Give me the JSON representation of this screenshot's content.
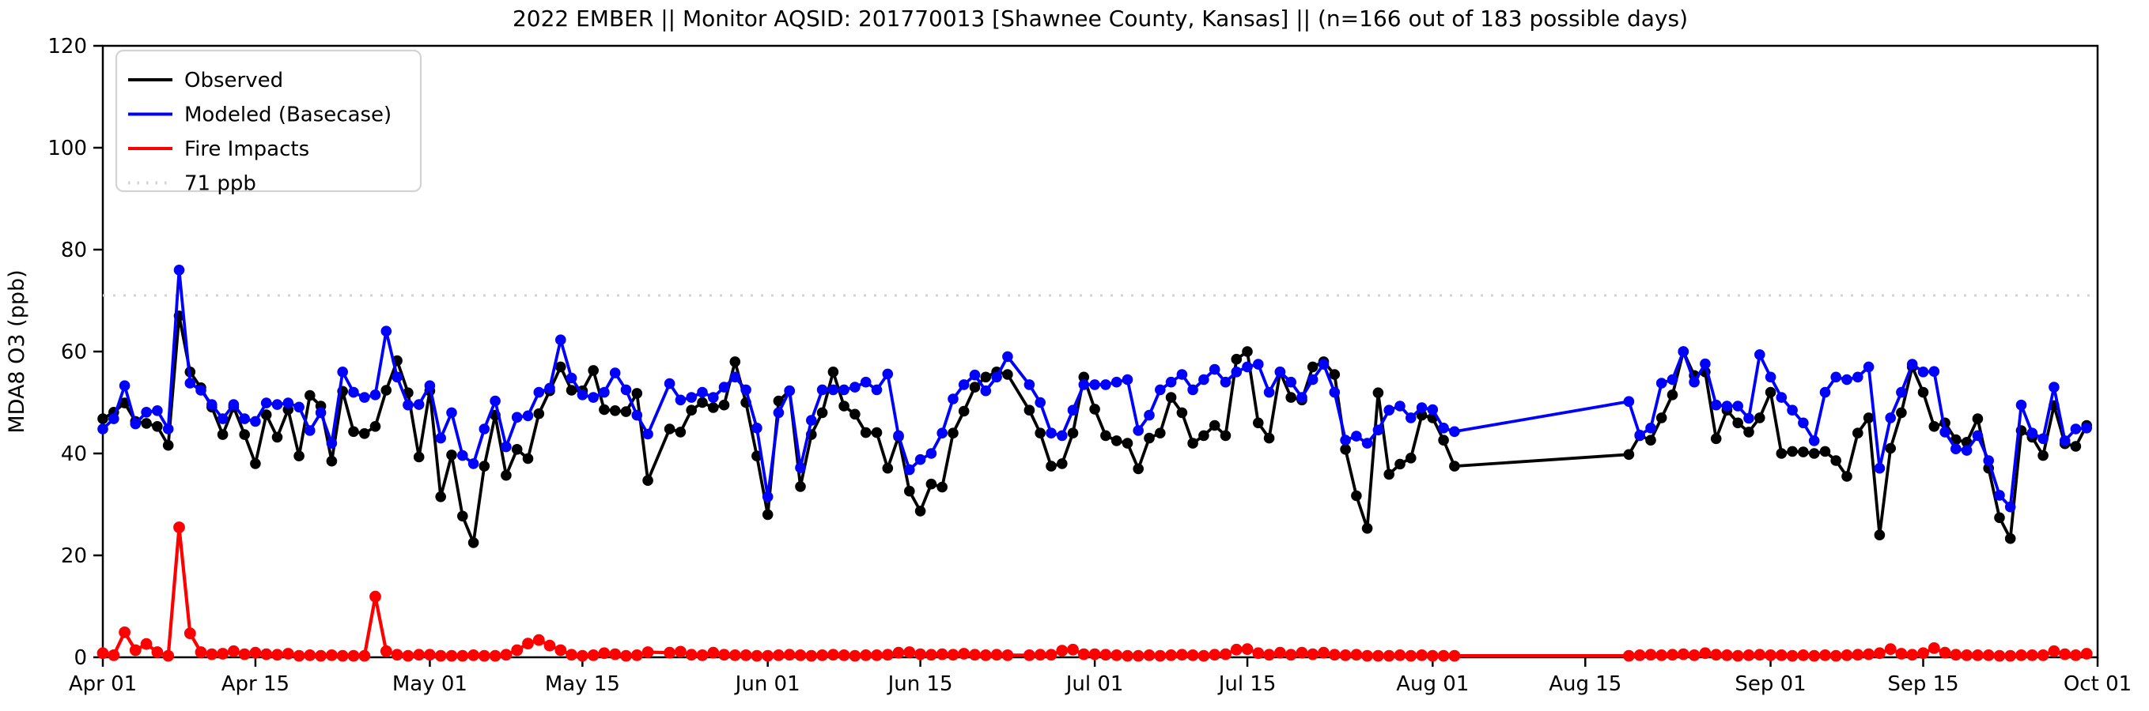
{
  "title": "2022 EMBER || Monitor AQSID: 201770013 [Shawnee County, Kansas] || (n=166 out of 183 possible days)",
  "axes": {
    "ylabel": "MDA8 O3 (ppb)",
    "ylim": [
      0,
      120
    ],
    "yticks": [
      {
        "label": "0",
        "value": 0
      },
      {
        "label": "20",
        "value": 20
      },
      {
        "label": "40",
        "value": 40
      },
      {
        "label": "60",
        "value": 60
      },
      {
        "label": "80",
        "value": 80
      },
      {
        "label": "100",
        "value": 100
      },
      {
        "label": "120",
        "value": 120
      }
    ],
    "xticks": [
      {
        "label": "Apr 01",
        "offset": 0
      },
      {
        "label": "Apr 15",
        "offset": 14
      },
      {
        "label": "May 01",
        "offset": 30
      },
      {
        "label": "May 15",
        "offset": 44
      },
      {
        "label": "Jun 01",
        "offset": 61
      },
      {
        "label": "Jun 15",
        "offset": 75
      },
      {
        "label": "Jul 01",
        "offset": 91
      },
      {
        "label": "Jul 15",
        "offset": 105
      },
      {
        "label": "Aug 01",
        "offset": 122
      },
      {
        "label": "Aug 15",
        "offset": 136
      },
      {
        "label": "Sep 01",
        "offset": 153
      },
      {
        "label": "Sep 15",
        "offset": 167
      },
      {
        "label": "Oct 01",
        "offset": 183
      }
    ],
    "grid": false
  },
  "legend": {
    "position": "upper-left",
    "items": [
      {
        "label": "Observed",
        "color": "#000000",
        "style": "solid"
      },
      {
        "label": "Modeled (Basecase)",
        "color": "#0000ff",
        "style": "solid"
      },
      {
        "label": "Fire Impacts",
        "color": "#ff0000",
        "style": "solid"
      },
      {
        "label": "71 ppb",
        "color": "#d3d3d3",
        "style": "dotted"
      }
    ]
  },
  "threshold": {
    "label": "71 ppb",
    "value": 71,
    "color": "#d3d3d3",
    "style": "dotted"
  },
  "chart_data": {
    "type": "line",
    "x_unit": "days since Apr 01 2022 (offset; ticks labeled Apr 01 - Oct 01)",
    "x_range_days": 183,
    "n_days_plotted": 166,
    "n_days_possible": 183,
    "missing_note": "no markers Aug 04-18 (long straight gap segment), May 22, Jun 24",
    "x_offsets": [
      0,
      1,
      2,
      3,
      4,
      5,
      6,
      7,
      8,
      9,
      10,
      11,
      12,
      13,
      14,
      15,
      16,
      17,
      18,
      19,
      20,
      21,
      22,
      23,
      24,
      25,
      26,
      27,
      28,
      29,
      30,
      31,
      32,
      33,
      34,
      35,
      36,
      37,
      38,
      39,
      40,
      41,
      42,
      43,
      44,
      45,
      46,
      47,
      48,
      49,
      50,
      52,
      53,
      54,
      55,
      56,
      57,
      58,
      59,
      60,
      61,
      62,
      63,
      64,
      65,
      66,
      67,
      68,
      69,
      70,
      71,
      72,
      73,
      74,
      75,
      76,
      77,
      78,
      79,
      80,
      81,
      82,
      83,
      85,
      86,
      87,
      88,
      89,
      90,
      91,
      92,
      93,
      94,
      95,
      96,
      97,
      98,
      99,
      100,
      101,
      102,
      103,
      104,
      105,
      106,
      107,
      108,
      109,
      110,
      111,
      112,
      113,
      114,
      115,
      116,
      117,
      118,
      119,
      120,
      121,
      122,
      123,
      124,
      140,
      141,
      142,
      143,
      144,
      145,
      146,
      147,
      148,
      149,
      150,
      151,
      152,
      153,
      154,
      155,
      156,
      157,
      158,
      159,
      160,
      161,
      162,
      163,
      164,
      165,
      166,
      167,
      168,
      169,
      170,
      171,
      172,
      173,
      174,
      175,
      176,
      177,
      178,
      179,
      180,
      181,
      182
    ],
    "series": [
      {
        "name": "Observed",
        "color": "#000000",
        "marker": "circle",
        "line_width": 3.8,
        "marker_r": 6.8,
        "values": [
          46.8,
          48.1,
          49.9,
          46.3,
          45.9,
          45.3,
          41.6,
          67,
          56,
          52.9,
          49.1,
          43.7,
          49.1,
          43.7,
          38,
          47.6,
          43.2,
          48.6,
          39.5,
          51.4,
          49.3,
          38.5,
          52.2,
          44.3,
          43.9,
          45.3,
          52.4,
          58.2,
          51.9,
          39.3,
          52.3,
          31.5,
          39.7,
          27.7,
          22.5,
          37.5,
          47.5,
          35.7,
          40.8,
          39,
          47.8,
          52.3,
          57,
          52.4,
          52.3,
          56.3,
          48.6,
          48.4,
          48.2,
          51.8,
          34.7,
          44.8,
          44.2,
          48.5,
          50,
          49,
          49.5,
          58,
          50,
          39.5,
          28,
          50.3,
          52.3,
          33.5,
          43.7,
          48,
          56,
          49.3,
          47.7,
          44.1,
          44.1,
          37.1,
          43.3,
          32.6,
          28.7,
          34,
          33.4,
          44,
          48.3,
          53,
          55,
          56,
          55.5,
          48.5,
          44,
          37.5,
          38,
          44,
          55,
          48.7,
          43.5,
          42.5,
          42,
          37,
          43,
          44,
          51,
          48,
          42,
          43.5,
          45.5,
          43.5,
          58.5,
          60,
          46,
          43,
          56,
          51,
          50.5,
          57,
          58,
          55.5,
          40.8,
          31.7,
          25.3,
          51.9,
          35.9,
          37.9,
          39.1,
          47.5,
          47,
          42.6,
          37.5,
          39.8,
          43.5,
          42.6,
          47,
          51.5,
          60,
          55.3,
          56,
          42.9,
          48.5,
          46,
          44.2,
          47,
          52,
          40,
          40.4,
          40.3,
          40,
          40.4,
          38.6,
          35.5,
          44,
          47,
          24,
          41,
          48,
          57,
          52,
          45.3,
          46,
          42.7,
          42.2,
          46.8,
          37.1,
          27.4,
          23.3,
          44.5,
          43.2,
          39.6,
          49.4,
          41.9,
          41.4,
          45.5
        ]
      },
      {
        "name": "Modeled (Basecase)",
        "color": "#0000ff",
        "marker": "circle",
        "line_width": 3.8,
        "marker_r": 6.8,
        "values": [
          44.8,
          46.8,
          53.3,
          45.8,
          48.1,
          48.4,
          44.8,
          76,
          53.8,
          52.4,
          49.6,
          46.8,
          49.6,
          46.8,
          46.3,
          49.9,
          49.6,
          49.9,
          49.1,
          44.5,
          48,
          42,
          56,
          52,
          51,
          51.5,
          64,
          55,
          49.5,
          49.6,
          53.3,
          43,
          48,
          39.6,
          38,
          44.8,
          50.3,
          41.3,
          47.1,
          47.4,
          52,
          52.8,
          62.3,
          54.8,
          51.5,
          51,
          52,
          55.8,
          52.5,
          47.5,
          43.8,
          53.7,
          50.5,
          51,
          52,
          51,
          53,
          55,
          52.5,
          45,
          31.5,
          48,
          52.3,
          37.2,
          46.5,
          52.5,
          52.5,
          52.5,
          53,
          54,
          52.5,
          55.6,
          43.5,
          36.8,
          38.8,
          40,
          44,
          50.7,
          53.5,
          55.4,
          52.3,
          55,
          59,
          53.5,
          50,
          44,
          43.5,
          48.5,
          53.5,
          53.5,
          53.5,
          54,
          54.5,
          44.5,
          47.5,
          52.5,
          54,
          55.5,
          52.5,
          54.5,
          56.5,
          54,
          56,
          57,
          57.5,
          52,
          56,
          54,
          51,
          54.5,
          57.5,
          52,
          42.6,
          43.4,
          42,
          44.6,
          48.5,
          49.3,
          47,
          49,
          48.6,
          45,
          44.3,
          50.2,
          43.6,
          45,
          53.8,
          54.5,
          60,
          54,
          57.6,
          49.5,
          49.3,
          49.3,
          46.9,
          59.4,
          55,
          51,
          48.5,
          46,
          42.5,
          52,
          55,
          54.5,
          55,
          57,
          37.1,
          47,
          52,
          57.5,
          56,
          56.1,
          44.2,
          40.9,
          40.6,
          43.5,
          38.6,
          31.8,
          29.5,
          49.5,
          44,
          42.9,
          53,
          42.5,
          44.8,
          45
        ]
      },
      {
        "name": "Fire Impacts",
        "color": "#ff0000",
        "marker": "circle",
        "line_width": 4.2,
        "marker_r": 7.4,
        "values": [
          0.8,
          0.4,
          4.9,
          1.4,
          2.6,
          1,
          0.3,
          25.5,
          4.7,
          1,
          0.6,
          0.7,
          1.2,
          0.6,
          0.9,
          0.6,
          0.5,
          0.7,
          0.3,
          0.4,
          0.3,
          0.4,
          0.3,
          0.3,
          0.3,
          11.9,
          1.2,
          0.5,
          0.3,
          0.5,
          0.5,
          0.3,
          0.3,
          0.3,
          0.4,
          0.3,
          0.3,
          0.5,
          1.4,
          2.7,
          3.4,
          2.3,
          1.4,
          0.5,
          0.3,
          0.4,
          0.8,
          0.6,
          0.3,
          0.4,
          1,
          0.9,
          1.1,
          0.5,
          0.4,
          0.9,
          0.5,
          0.4,
          0.4,
          0.3,
          0.3,
          0.4,
          0.5,
          0.4,
          0.3,
          0.4,
          0.5,
          0.4,
          0.3,
          0.4,
          0.4,
          0.5,
          0.9,
          1,
          0.6,
          0.5,
          0.6,
          0.5,
          0.7,
          0.5,
          0.4,
          0.5,
          0.4,
          0.4,
          0.5,
          0.5,
          1.3,
          1.5,
          0.6,
          0.6,
          0.5,
          0.4,
          0.3,
          0.3,
          0.4,
          0.3,
          0.4,
          0.5,
          0.4,
          0.3,
          0.5,
          0.6,
          1.5,
          1.6,
          0.8,
          0.5,
          0.9,
          0.5,
          0.9,
          0.6,
          0.9,
          0.5,
          0.4,
          0.5,
          0.3,
          0.3,
          0.3,
          0.4,
          0.3,
          0.4,
          0.3,
          0.3,
          0.3,
          0.3,
          0.4,
          0.5,
          0.4,
          0.5,
          0.6,
          0.4,
          0.8,
          0.5,
          0.4,
          0.3,
          0.4,
          0.5,
          0.4,
          0.4,
          0.3,
          0.4,
          0.3,
          0.4,
          0.3,
          0.4,
          0.5,
          0.6,
          0.8,
          1.6,
          0.7,
          0.5,
          0.8,
          1.8,
          0.9,
          0.5,
          0.4,
          0.4,
          0.4,
          0.3,
          0.3,
          0.4,
          0.4,
          0.4,
          1.2,
          0.6,
          0.4,
          0.7
        ]
      }
    ]
  }
}
